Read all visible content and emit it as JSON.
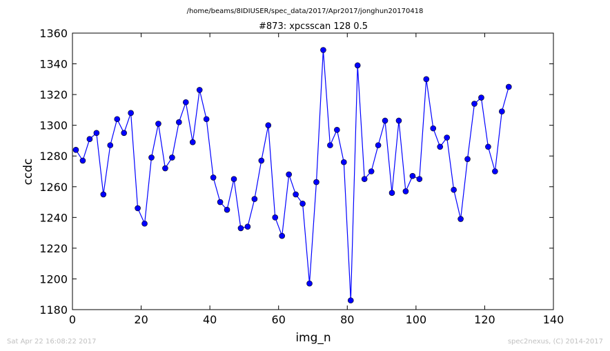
{
  "suptitle": "/home/beams/8IDIUSER/spec_data/2017/Apr2017/jonghun20170418",
  "footer": {
    "timestamp": "Sat Apr 22 16:08:22 2017",
    "credit": "spec2nexus, (C) 2014-2017"
  },
  "chart_data": {
    "type": "line",
    "title": "#873: xpcsscan 128 0.5",
    "xlabel": "img_n",
    "ylabel": "ccdc",
    "xlim": [
      0,
      140
    ],
    "ylim": [
      1180,
      1360
    ],
    "xticks": [
      "0",
      "20",
      "40",
      "60",
      "80",
      "100",
      "120",
      "140"
    ],
    "yticks": [
      "1180",
      "1200",
      "1220",
      "1240",
      "1260",
      "1280",
      "1300",
      "1320",
      "1340",
      "1360"
    ],
    "grid": false,
    "line_color": "#0000ff",
    "marker": "circle",
    "x": [
      1,
      3,
      5,
      7,
      9,
      11,
      13,
      15,
      17,
      19,
      21,
      23,
      25,
      27,
      29,
      31,
      33,
      35,
      37,
      39,
      41,
      43,
      45,
      47,
      49,
      51,
      53,
      55,
      57,
      59,
      61,
      63,
      65,
      67,
      69,
      71,
      73,
      75,
      77,
      79,
      81,
      83,
      85,
      87,
      89,
      91,
      93,
      95,
      97,
      99,
      101,
      103,
      105,
      107,
      109,
      111,
      113,
      115,
      117,
      119,
      121,
      123,
      125,
      127
    ],
    "y": [
      1284,
      1277,
      1291,
      1295,
      1255,
      1287,
      1304,
      1295,
      1308,
      1246,
      1236,
      1279,
      1301,
      1272,
      1279,
      1302,
      1315,
      1289,
      1323,
      1304,
      1266,
      1250,
      1245,
      1265,
      1233,
      1234,
      1252,
      1277,
      1300,
      1240,
      1228,
      1268,
      1255,
      1249,
      1197,
      1263,
      1349,
      1287,
      1297,
      1276,
      1186,
      1339,
      1265,
      1270,
      1287,
      1303,
      1256,
      1303,
      1257,
      1267,
      1265,
      1330,
      1298,
      1286,
      1292,
      1258,
      1239,
      1278,
      1314,
      1318,
      1286,
      1270,
      1309,
      1325
    ]
  }
}
